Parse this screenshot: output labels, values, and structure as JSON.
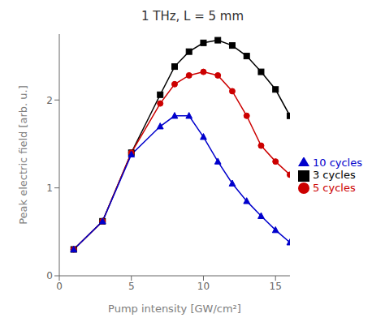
{
  "chart_data": {
    "type": "line",
    "title": "1 THz, L = 5 mm",
    "xlabel": "Pump intensity [GW/cm²]",
    "ylabel": "Peak electric field [arb. u.]",
    "xlim": [
      0,
      16
    ],
    "ylim": [
      0,
      2.75
    ],
    "xticks": [
      0,
      5,
      10,
      15
    ],
    "yticks": [
      0,
      1,
      2
    ],
    "grid": false,
    "legend": "right",
    "x": [
      1,
      3,
      5,
      7,
      8,
      9,
      10,
      11,
      12,
      13,
      14,
      15,
      16
    ],
    "series": [
      {
        "name": "3 cycles",
        "color": "#000000",
        "marker": "square",
        "values": [
          0.3,
          0.62,
          1.4,
          2.06,
          2.38,
          2.55,
          2.65,
          2.68,
          2.62,
          2.5,
          2.32,
          2.12,
          1.82
        ]
      },
      {
        "name": "5 cycles",
        "color": "#cc0000",
        "marker": "circle",
        "values": [
          0.3,
          0.62,
          1.4,
          1.96,
          2.18,
          2.28,
          2.32,
          2.28,
          2.1,
          1.82,
          1.48,
          1.3,
          1.15
        ]
      },
      {
        "name": "10 cycles",
        "color": "#0000cc",
        "marker": "triangle",
        "values": [
          0.3,
          0.62,
          1.38,
          1.7,
          1.82,
          1.82,
          1.58,
          1.3,
          1.05,
          0.85,
          0.68,
          0.52,
          0.38
        ]
      }
    ]
  }
}
